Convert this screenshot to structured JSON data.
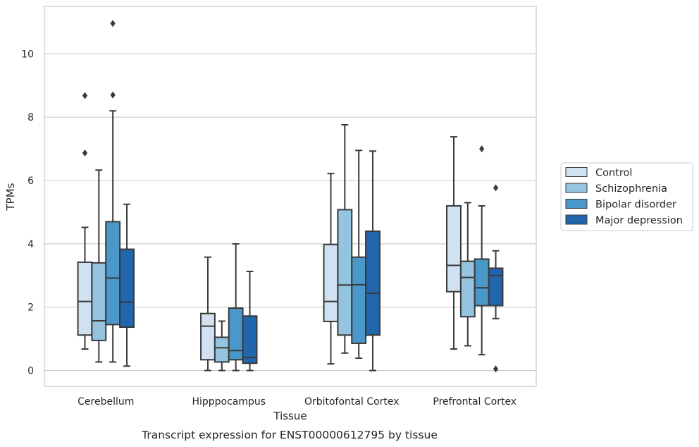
{
  "caption": "Transcript expression for ENST00000612795 by tissue",
  "chart_data": {
    "type": "box",
    "xlabel": "Tissue",
    "ylabel": "TPMs",
    "ylim": [
      -0.5,
      11.5
    ],
    "yticks": [
      0,
      2,
      4,
      6,
      8,
      10
    ],
    "grid": "horizontal",
    "legend_position": "right",
    "categories": [
      "Cerebellum",
      "Hipppocampus",
      "Orbitofontal Cortex",
      "Prefrontal Cortex"
    ],
    "series": [
      {
        "name": "Control",
        "color": "#d0e1f2",
        "boxes": [
          {
            "whisker_low": 0.68,
            "q1": 1.12,
            "median": 2.18,
            "q3": 3.42,
            "whisker_high": 4.52,
            "outliers": [
              6.87,
              8.68
            ]
          },
          {
            "whisker_low": 0.0,
            "q1": 0.34,
            "median": 1.4,
            "q3": 1.8,
            "whisker_high": 3.58,
            "outliers": []
          },
          {
            "whisker_low": 0.21,
            "q1": 1.55,
            "median": 2.18,
            "q3": 3.98,
            "whisker_high": 6.22,
            "outliers": []
          },
          {
            "whisker_low": 0.68,
            "q1": 2.49,
            "median": 3.32,
            "q3": 5.2,
            "whisker_high": 7.38,
            "outliers": []
          }
        ]
      },
      {
        "name": "Schizophrenia",
        "color": "#94c4df",
        "boxes": [
          {
            "whisker_low": 0.27,
            "q1": 0.95,
            "median": 1.57,
            "q3": 3.4,
            "whisker_high": 6.33,
            "outliers": []
          },
          {
            "whisker_low": 0.0,
            "q1": 0.27,
            "median": 0.72,
            "q3": 1.05,
            "whisker_high": 1.56,
            "outliers": []
          },
          {
            "whisker_low": 0.55,
            "q1": 1.12,
            "median": 2.7,
            "q3": 5.08,
            "whisker_high": 7.76,
            "outliers": []
          },
          {
            "whisker_low": 0.78,
            "q1": 1.7,
            "median": 2.94,
            "q3": 3.45,
            "whisker_high": 5.3,
            "outliers": []
          }
        ]
      },
      {
        "name": "Bipolar disorder",
        "color": "#4a98c9",
        "boxes": [
          {
            "whisker_low": 0.27,
            "q1": 1.45,
            "median": 2.92,
            "q3": 4.7,
            "whisker_high": 8.2,
            "outliers": [
              8.7,
              10.96
            ]
          },
          {
            "whisker_low": 0.0,
            "q1": 0.34,
            "median": 0.63,
            "q3": 1.97,
            "whisker_high": 4.0,
            "outliers": []
          },
          {
            "whisker_low": 0.39,
            "q1": 0.86,
            "median": 2.71,
            "q3": 3.58,
            "whisker_high": 6.95,
            "outliers": []
          },
          {
            "whisker_low": 0.5,
            "q1": 2.05,
            "median": 2.61,
            "q3": 3.52,
            "whisker_high": 5.2,
            "outliers": [
              7.0
            ]
          }
        ]
      },
      {
        "name": "Major depression",
        "color": "#2166ac",
        "boxes": [
          {
            "whisker_low": 0.14,
            "q1": 1.37,
            "median": 2.16,
            "q3": 3.83,
            "whisker_high": 5.25,
            "outliers": []
          },
          {
            "whisker_low": 0.0,
            "q1": 0.23,
            "median": 0.41,
            "q3": 1.72,
            "whisker_high": 3.13,
            "outliers": []
          },
          {
            "whisker_low": 0.0,
            "q1": 1.12,
            "median": 2.44,
            "q3": 4.4,
            "whisker_high": 6.93,
            "outliers": []
          },
          {
            "whisker_low": 1.64,
            "q1": 2.05,
            "median": 3.0,
            "q3": 3.23,
            "whisker_high": 3.78,
            "outliers": [
              0.05,
              5.77
            ]
          }
        ]
      }
    ]
  }
}
